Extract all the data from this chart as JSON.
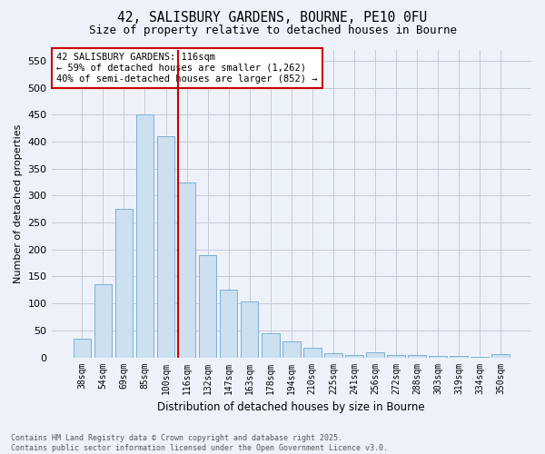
{
  "title_line1": "42, SALISBURY GARDENS, BOURNE, PE10 0FU",
  "title_line2": "Size of property relative to detached houses in Bourne",
  "xlabel": "Distribution of detached houses by size in Bourne",
  "ylabel": "Number of detached properties",
  "categories": [
    "38sqm",
    "54sqm",
    "69sqm",
    "85sqm",
    "100sqm",
    "116sqm",
    "132sqm",
    "147sqm",
    "163sqm",
    "178sqm",
    "194sqm",
    "210sqm",
    "225sqm",
    "241sqm",
    "256sqm",
    "272sqm",
    "288sqm",
    "303sqm",
    "319sqm",
    "334sqm",
    "350sqm"
  ],
  "values": [
    35,
    135,
    275,
    450,
    410,
    325,
    190,
    125,
    103,
    45,
    30,
    18,
    7,
    5,
    9,
    4,
    5,
    3,
    2,
    1,
    6
  ],
  "bar_color": "#cce0f0",
  "bar_edge_color": "#7bafd4",
  "highlight_index": 5,
  "highlight_line_color": "#cc0000",
  "annotation_line1": "42 SALISBURY GARDENS: 116sqm",
  "annotation_line2": "← 59% of detached houses are smaller (1,262)",
  "annotation_line3": "40% of semi-detached houses are larger (852) →",
  "annotation_box_edgecolor": "#cc0000",
  "ylim": [
    0,
    570
  ],
  "yticks": [
    0,
    50,
    100,
    150,
    200,
    250,
    300,
    350,
    400,
    450,
    500,
    550
  ],
  "grid_color": "#c8c8d8",
  "background_color": "#edf2fa",
  "footer_line1": "Contains HM Land Registry data © Crown copyright and database right 2025.",
  "footer_line2": "Contains public sector information licensed under the Open Government Licence v3.0."
}
